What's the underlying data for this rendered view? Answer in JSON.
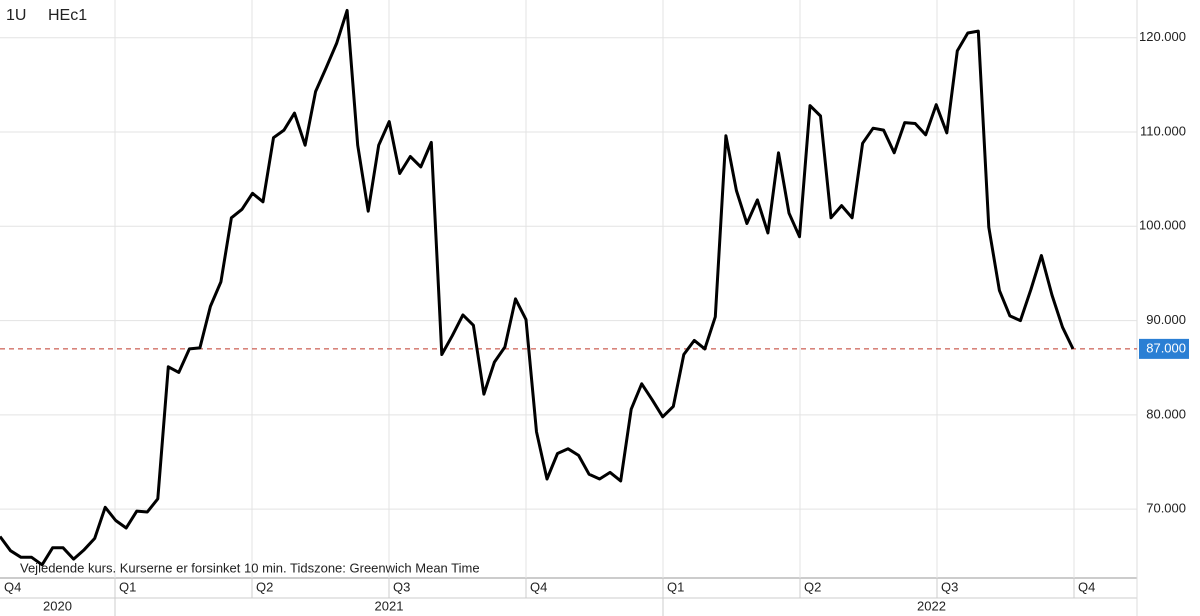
{
  "chart_data": {
    "type": "line",
    "title_left": "1U",
    "title": "HEc1",
    "note": "Vejledende kurs. Kurserne er forsinket 10 min.    Tidszone: Greenwich Mean Time",
    "quarters": [
      "Q4",
      "Q1",
      "Q2",
      "Q3",
      "Q4",
      "Q1",
      "Q2",
      "Q3",
      "Q4"
    ],
    "years": [
      "2020",
      "2021",
      "2022"
    ],
    "series": [
      {
        "name": "HEc1",
        "color": "#000000",
        "values": [
          67.1,
          65.6,
          64.9,
          64.9,
          64.1,
          65.9,
          65.9,
          64.7,
          65.7,
          66.9,
          70.2,
          68.8,
          68.0,
          69.8,
          69.7,
          71.1,
          85.1,
          84.5,
          87.0,
          87.1,
          91.5,
          94.1,
          100.9,
          101.8,
          103.5,
          102.6,
          109.4,
          110.2,
          112.0,
          108.6,
          114.3,
          116.8,
          119.4,
          122.9,
          108.6,
          101.6,
          108.6,
          111.1,
          105.6,
          107.4,
          106.3,
          108.9,
          86.4,
          88.4,
          90.6,
          89.5,
          82.2,
          85.6,
          87.2,
          92.3,
          90.1,
          78.2,
          73.2,
          75.9,
          76.4,
          75.7,
          73.7,
          73.2,
          73.9,
          73.0,
          80.6,
          83.3,
          81.6,
          79.8,
          80.9,
          86.4,
          87.9,
          87.0,
          90.4,
          109.6,
          103.8,
          100.3,
          102.8,
          99.3,
          107.8,
          101.4,
          98.9,
          112.8,
          111.7,
          100.9,
          102.2,
          100.9,
          108.8,
          110.4,
          110.2,
          107.8,
          111.0,
          110.9,
          109.7,
          112.9,
          109.9,
          118.6,
          120.5,
          120.7,
          99.9,
          93.2,
          90.5,
          90.0,
          93.3,
          96.9,
          92.7,
          89.3,
          87.0
        ]
      }
    ],
    "ylim": [
      62.7,
      124.0
    ],
    "yticks": [
      {
        "value": 70,
        "label": "70.000"
      },
      {
        "value": 80,
        "label": "80.000"
      },
      {
        "value": 90,
        "label": "90.000"
      },
      {
        "value": 100,
        "label": "100.000"
      },
      {
        "value": 110,
        "label": "110.000"
      },
      {
        "value": 120,
        "label": "120.000"
      }
    ],
    "last_price": {
      "value": 87,
      "label": "87.000"
    },
    "last_price_color": "#c0392b",
    "last_label_color": "#2a7fd4",
    "grid": true
  }
}
